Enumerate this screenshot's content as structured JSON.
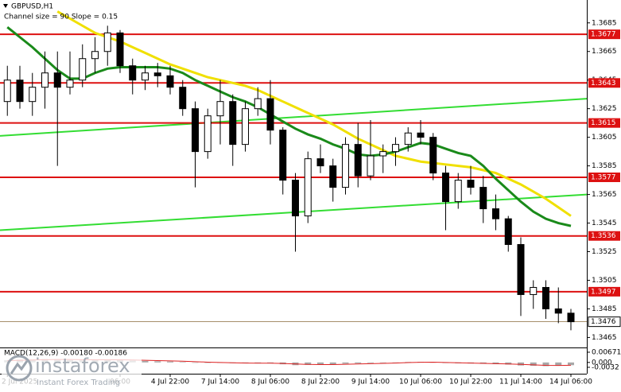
{
  "chart_data": {
    "type": "candlestick",
    "symbol": "GBPUSD,H1",
    "subtitle": "Channel size = 90 Slope = 0.15",
    "categories": [
      "2 Jul 2025",
      null,
      null,
      null,
      null,
      null,
      null,
      null,
      null,
      "06:00",
      null,
      null,
      null,
      "4 Jul 22:00",
      null,
      null,
      null,
      "7 Jul 14:00",
      null,
      null,
      null,
      "8 Jul 06:00",
      null,
      null,
      null,
      "8 Jul 22:00",
      null,
      null,
      null,
      "9 Jul 14:00",
      null,
      null,
      null,
      "10 Jul 06:00",
      null,
      null,
      null,
      "10 Jul 22:00",
      null,
      null,
      null,
      "11 Jul 14:00",
      null,
      null,
      null,
      "14 Jul 06:00"
    ],
    "open": [
      1.363,
      1.3645,
      1.363,
      1.364,
      1.365,
      1.364,
      1.3645,
      1.366,
      1.3665,
      1.3678,
      1.3655,
      1.3645,
      1.365,
      1.3648,
      1.364,
      1.3625,
      1.3595,
      1.362,
      1.363,
      1.36,
      1.3625,
      1.3632,
      1.361,
      1.3575,
      1.355,
      1.359,
      1.3585,
      1.357,
      1.36,
      1.3578,
      1.3592,
      1.3595,
      1.36,
      1.3608,
      1.3605,
      1.358,
      1.356,
      1.3575,
      1.357,
      1.3555,
      1.3548,
      1.353,
      1.3495,
      1.35,
      1.3485,
      1.3482
    ],
    "high": [
      1.3655,
      1.3655,
      1.365,
      1.3665,
      1.3665,
      1.3665,
      1.367,
      1.3675,
      1.3683,
      1.368,
      1.366,
      1.3655,
      1.3657,
      1.3655,
      1.3645,
      1.363,
      1.3625,
      1.3645,
      1.3635,
      1.363,
      1.364,
      1.3645,
      1.3612,
      1.358,
      1.3595,
      1.36,
      1.359,
      1.3605,
      1.3615,
      1.3617,
      1.36,
      1.3605,
      1.3612,
      1.3617,
      1.3608,
      1.3585,
      1.358,
      1.3585,
      1.3578,
      1.3565,
      1.355,
      1.3535,
      1.3505,
      1.3505,
      1.35,
      1.3485
    ],
    "low": [
      1.362,
      1.3625,
      1.362,
      1.3625,
      1.3585,
      1.3635,
      1.364,
      1.365,
      1.3655,
      1.365,
      1.3635,
      1.3638,
      1.364,
      1.3635,
      1.362,
      1.357,
      1.359,
      1.36,
      1.3585,
      1.3595,
      1.362,
      1.36,
      1.3565,
      1.3525,
      1.3545,
      1.358,
      1.356,
      1.3565,
      1.357,
      1.3575,
      1.358,
      1.3585,
      1.3595,
      1.36,
      1.3575,
      1.354,
      1.3555,
      1.3565,
      1.3545,
      1.354,
      1.3525,
      1.348,
      1.3485,
      1.3478,
      1.3475,
      1.347
    ],
    "close": [
      1.3645,
      1.363,
      1.364,
      1.365,
      1.364,
      1.3645,
      1.366,
      1.3665,
      1.3678,
      1.3655,
      1.3645,
      1.365,
      1.3648,
      1.364,
      1.3625,
      1.3595,
      1.362,
      1.363,
      1.36,
      1.3625,
      1.3632,
      1.361,
      1.3575,
      1.355,
      1.359,
      1.3585,
      1.357,
      1.36,
      1.3578,
      1.3592,
      1.3595,
      1.36,
      1.3608,
      1.3605,
      1.358,
      1.356,
      1.3575,
      1.357,
      1.3555,
      1.3548,
      1.353,
      1.3495,
      1.35,
      1.3485,
      1.3482,
      1.3476
    ],
    "ylim": [
      1.3458,
      1.3701
    ],
    "yticks": [
      1.3685,
      1.3665,
      1.3645,
      1.3625,
      1.3605,
      1.3585,
      1.3565,
      1.3545,
      1.3525,
      1.3505,
      1.3485,
      1.3465
    ],
    "series": [
      {
        "color": "#f0e000",
        "values": [
          null,
          null,
          null,
          null,
          1.3693,
          1.3688,
          1.3683,
          1.3678,
          1.3675,
          1.3672,
          1.3668,
          1.3664,
          1.366,
          1.3656,
          1.3653,
          1.365,
          1.3647,
          1.3645,
          1.3643,
          1.3641,
          1.3638,
          1.3634,
          1.363,
          1.3626,
          1.3622,
          1.3618,
          1.3614,
          1.3609,
          1.3604,
          1.36,
          1.3596,
          1.3592,
          1.359,
          1.3588,
          1.3587,
          1.3586,
          1.3585,
          1.3584,
          1.3582,
          1.358,
          1.3576,
          1.3572,
          1.3567,
          1.3562,
          1.3556,
          1.355
        ]
      },
      {
        "color": "#1a8a1a",
        "values": [
          1.3682,
          1.3675,
          1.3668,
          1.366,
          1.3652,
          1.3646,
          1.3646,
          1.365,
          1.3653,
          1.3654,
          1.3654,
          1.3654,
          1.3654,
          1.3653,
          1.365,
          1.3645,
          1.3641,
          1.3637,
          1.3633,
          1.363,
          1.3626,
          1.3621,
          1.3616,
          1.3611,
          1.3607,
          1.3604,
          1.36,
          1.3597,
          1.3593,
          1.3592,
          1.3593,
          1.3595,
          1.3598,
          1.3601,
          1.36,
          1.3597,
          1.3594,
          1.3592,
          1.3585,
          1.3576,
          1.3568,
          1.356,
          1.3553,
          1.3548,
          1.3545,
          1.3543
        ]
      }
    ],
    "trend_lines": [
      {
        "color": "#33dd33",
        "values": [
          1.3606,
          1.3632
        ]
      },
      {
        "color": "#33dd33",
        "values": [
          1.354,
          1.3565
        ]
      }
    ],
    "levels": {
      "color": "#dd1111",
      "values": [
        1.3677,
        1.3643,
        1.3615,
        1.3577,
        1.3536,
        1.3497
      ]
    },
    "current_price": 1.3476,
    "macd": {
      "type": "bar",
      "label": "MACD(12,26,9) -0.00180 -0.00186",
      "histogram": {
        "color": "#a8a8a8",
        "values": [
          0.0015,
          0.0018,
          0.002,
          0.0022,
          0.002,
          0.0016,
          0.0014,
          0.0016,
          0.0018,
          0.0016,
          0.0012,
          0.001,
          0.0008,
          0.0006,
          0.0003,
          -0.0002,
          -0.0003,
          -0.0002,
          -0.0005,
          -0.0006,
          -0.0005,
          -0.0006,
          -0.0012,
          -0.0018,
          -0.0016,
          -0.0014,
          -0.0013,
          -0.0008,
          -0.0006,
          -0.0004,
          -0.0002,
          0,
          0.0003,
          0.0004,
          0.0001,
          -0.0004,
          -0.0006,
          -0.0007,
          -0.0009,
          -0.0011,
          -0.0014,
          -0.002,
          -0.0022,
          -0.0024,
          -0.0022,
          -0.0018
        ]
      },
      "signal": {
        "color": "#dd2222",
        "values": [
          0.0012,
          0.0014,
          0.0016,
          0.0018,
          0.0019,
          0.0019,
          0.0018,
          0.0017,
          0.0017,
          0.0017,
          0.0016,
          0.0014,
          0.0012,
          0.001,
          0.0008,
          0.0005,
          0.0002,
          0,
          -0.0002,
          -0.0004,
          -0.0005,
          -0.0005,
          -0.0007,
          -0.001,
          -0.0013,
          -0.0014,
          -0.0014,
          -0.0012,
          -0.001,
          -0.0008,
          -0.0006,
          -0.0004,
          -0.0001,
          0.0001,
          0.0002,
          0,
          -0.0002,
          -0.0004,
          -0.0006,
          -0.0008,
          -0.001,
          -0.0013,
          -0.0016,
          -0.0019,
          -0.002,
          -0.00186
        ]
      },
      "ylim": [
        -0.0074,
        0.0093
      ],
      "yticks": [
        0.00671,
        {
          "value": 0,
          "label": "0.000"
        },
        -0.0032
      ]
    }
  },
  "logo": {
    "name": "instaforex",
    "tagline": "Instant Forex Trading"
  }
}
